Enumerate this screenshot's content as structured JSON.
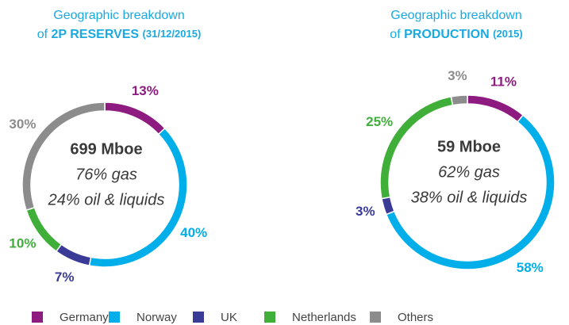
{
  "chart_data": [
    {
      "type": "pie",
      "title": {
        "line1": "Geographic breakdown",
        "prefix": "of",
        "bold": "2P RESERVES",
        "note": "(31/12/2015)"
      },
      "center_labels": [
        "699 Mboe",
        "76% gas",
        "24% oil & liquids"
      ],
      "categories": [
        "Germany",
        "Norway",
        "UK",
        "Netherlands",
        "Others"
      ],
      "values": [
        13,
        40,
        7,
        10,
        30
      ],
      "value_labels": [
        "13%",
        "40%",
        "7%",
        "10%",
        "30%"
      ],
      "colors": [
        "#8e1b7f",
        "#00aeea",
        "#3a3b97",
        "#3faf3a",
        "#8c8c8c"
      ]
    },
    {
      "type": "pie",
      "title": {
        "line1": "Geographic breakdown",
        "prefix": "of",
        "bold": "PRODUCTION",
        "note": "(2015)"
      },
      "center_labels": [
        "59 Mboe",
        "62% gas",
        "38% oil & liquids"
      ],
      "categories": [
        "Germany",
        "Norway",
        "UK",
        "Netherlands",
        "Others"
      ],
      "values": [
        11,
        58,
        3,
        25,
        3
      ],
      "value_labels": [
        "11%",
        "58%",
        "3%",
        "25%",
        "3%"
      ],
      "colors": [
        "#8e1b7f",
        "#00aeea",
        "#3a3b97",
        "#3faf3a",
        "#8c8c8c"
      ]
    }
  ]
}
